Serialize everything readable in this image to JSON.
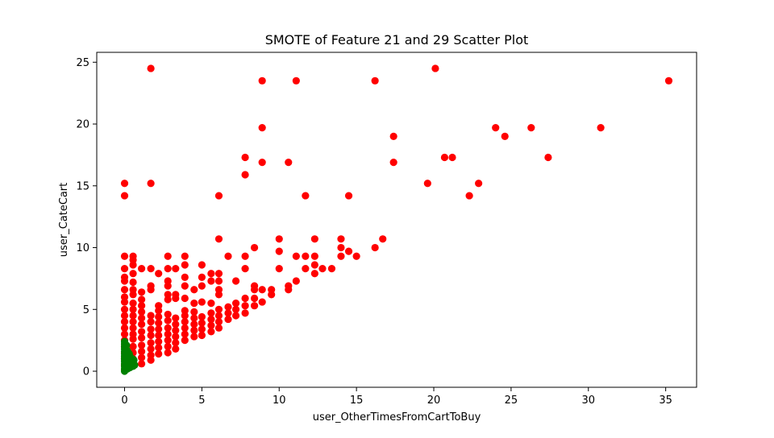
{
  "chart_data": {
    "type": "scatter",
    "title": "SMOTE of Feature 21 and 29 Scatter Plot",
    "xlabel": "user_OtherTimesFromCartToBuy",
    "ylabel": "user_CateCart",
    "xlim": [
      -1.8,
      37.0
    ],
    "ylim": [
      -1.3,
      25.8
    ],
    "xticks": [
      0,
      5,
      10,
      15,
      20,
      25,
      30,
      35
    ],
    "yticks": [
      0,
      5,
      10,
      15,
      20,
      25
    ],
    "grid": false,
    "colors": {
      "majority": "#ff0000",
      "minority": "#008000"
    },
    "series": [
      {
        "color": "#ff0000",
        "points": [
          [
            0,
            0.1
          ],
          [
            0,
            0.5
          ],
          [
            0,
            1.0
          ],
          [
            0,
            1.5
          ],
          [
            0,
            2.0
          ],
          [
            0,
            2.5
          ],
          [
            0,
            3.0
          ],
          [
            0,
            3.5
          ],
          [
            0,
            4.0
          ],
          [
            0,
            4.5
          ],
          [
            0,
            5.0
          ],
          [
            0,
            5.6
          ],
          [
            0,
            6.0
          ],
          [
            0,
            6.6
          ],
          [
            0,
            7.3
          ],
          [
            0,
            7.6
          ],
          [
            0,
            8.3
          ],
          [
            0,
            9.3
          ],
          [
            0,
            14.2
          ],
          [
            0,
            15.2
          ],
          [
            0.55,
            0.5
          ],
          [
            0.55,
            1.0
          ],
          [
            0.55,
            1.5
          ],
          [
            0.55,
            2.0
          ],
          [
            0.55,
            2.6
          ],
          [
            0.55,
            3.0
          ],
          [
            0.55,
            3.5
          ],
          [
            0.55,
            4.0
          ],
          [
            0.55,
            4.5
          ],
          [
            0.55,
            5.0
          ],
          [
            0.55,
            5.5
          ],
          [
            0.55,
            6.2
          ],
          [
            0.55,
            6.6
          ],
          [
            0.55,
            7.2
          ],
          [
            0.55,
            7.9
          ],
          [
            0.55,
            8.6
          ],
          [
            0.55,
            9.0
          ],
          [
            0.55,
            9.3
          ],
          [
            1.1,
            0.6
          ],
          [
            1.1,
            1.1
          ],
          [
            1.1,
            1.6
          ],
          [
            1.1,
            2.1
          ],
          [
            1.1,
            2.7
          ],
          [
            1.1,
            3.2
          ],
          [
            1.1,
            3.8
          ],
          [
            1.1,
            4.3
          ],
          [
            1.1,
            4.8
          ],
          [
            1.1,
            5.3
          ],
          [
            1.1,
            5.8
          ],
          [
            1.1,
            6.4
          ],
          [
            1.1,
            8.3
          ],
          [
            1.7,
            0.9
          ],
          [
            1.7,
            1.3
          ],
          [
            1.7,
            1.8
          ],
          [
            1.7,
            2.3
          ],
          [
            1.7,
            2.9
          ],
          [
            1.7,
            3.4
          ],
          [
            1.7,
            4.0
          ],
          [
            1.7,
            4.5
          ],
          [
            1.7,
            6.6
          ],
          [
            1.7,
            6.9
          ],
          [
            1.7,
            8.3
          ],
          [
            1.7,
            15.2
          ],
          [
            1.7,
            24.5
          ],
          [
            2.2,
            1.4
          ],
          [
            2.2,
            1.9
          ],
          [
            2.2,
            2.4
          ],
          [
            2.2,
            2.9
          ],
          [
            2.2,
            3.4
          ],
          [
            2.2,
            3.9
          ],
          [
            2.2,
            4.4
          ],
          [
            2.2,
            4.9
          ],
          [
            2.2,
            5.3
          ],
          [
            2.2,
            7.9
          ],
          [
            2.8,
            1.5
          ],
          [
            2.8,
            2.0
          ],
          [
            2.8,
            2.5
          ],
          [
            2.8,
            3.0
          ],
          [
            2.8,
            3.5
          ],
          [
            2.8,
            4.1
          ],
          [
            2.8,
            4.6
          ],
          [
            2.8,
            5.8
          ],
          [
            2.8,
            6.2
          ],
          [
            2.8,
            6.9
          ],
          [
            2.8,
            7.3
          ],
          [
            2.8,
            8.3
          ],
          [
            2.8,
            9.3
          ],
          [
            3.3,
            1.8
          ],
          [
            3.3,
            2.3
          ],
          [
            3.3,
            2.8
          ],
          [
            3.3,
            3.3
          ],
          [
            3.3,
            3.8
          ],
          [
            3.3,
            4.3
          ],
          [
            3.3,
            5.9
          ],
          [
            3.3,
            6.2
          ],
          [
            3.3,
            8.3
          ],
          [
            3.9,
            2.5
          ],
          [
            3.9,
            3.0
          ],
          [
            3.9,
            3.5
          ],
          [
            3.9,
            4.0
          ],
          [
            3.9,
            4.5
          ],
          [
            3.9,
            4.9
          ],
          [
            3.9,
            5.9
          ],
          [
            3.9,
            6.9
          ],
          [
            3.9,
            7.6
          ],
          [
            3.9,
            8.6
          ],
          [
            3.9,
            9.3
          ],
          [
            4.5,
            2.8
          ],
          [
            4.5,
            3.3
          ],
          [
            4.5,
            3.8
          ],
          [
            4.5,
            4.3
          ],
          [
            4.5,
            4.8
          ],
          [
            4.5,
            5.5
          ],
          [
            4.5,
            6.6
          ],
          [
            5.0,
            2.9
          ],
          [
            5.0,
            3.4
          ],
          [
            5.0,
            3.9
          ],
          [
            5.0,
            4.4
          ],
          [
            5.0,
            5.6
          ],
          [
            5.0,
            6.9
          ],
          [
            5.0,
            7.6
          ],
          [
            5.0,
            8.6
          ],
          [
            5.6,
            3.2
          ],
          [
            5.6,
            3.7
          ],
          [
            5.6,
            4.2
          ],
          [
            5.6,
            4.7
          ],
          [
            5.6,
            5.5
          ],
          [
            5.6,
            7.3
          ],
          [
            5.6,
            7.9
          ],
          [
            6.1,
            3.5
          ],
          [
            6.1,
            4.0
          ],
          [
            6.1,
            4.5
          ],
          [
            6.1,
            5.0
          ],
          [
            6.1,
            6.2
          ],
          [
            6.1,
            6.6
          ],
          [
            6.1,
            7.3
          ],
          [
            6.1,
            7.9
          ],
          [
            6.1,
            10.7
          ],
          [
            6.1,
            14.2
          ],
          [
            6.7,
            4.2
          ],
          [
            6.7,
            4.7
          ],
          [
            6.7,
            5.2
          ],
          [
            6.7,
            9.3
          ],
          [
            7.2,
            4.5
          ],
          [
            7.2,
            5.0
          ],
          [
            7.2,
            5.5
          ],
          [
            7.2,
            7.3
          ],
          [
            7.8,
            4.7
          ],
          [
            7.8,
            5.3
          ],
          [
            7.8,
            5.9
          ],
          [
            7.8,
            8.3
          ],
          [
            7.8,
            9.3
          ],
          [
            7.8,
            15.9
          ],
          [
            7.8,
            17.3
          ],
          [
            8.4,
            5.3
          ],
          [
            8.4,
            5.9
          ],
          [
            8.4,
            6.6
          ],
          [
            8.4,
            6.9
          ],
          [
            8.4,
            10.0
          ],
          [
            8.9,
            5.6
          ],
          [
            8.9,
            6.6
          ],
          [
            8.9,
            16.9
          ],
          [
            8.9,
            19.7
          ],
          [
            8.9,
            23.5
          ],
          [
            9.5,
            6.2
          ],
          [
            9.5,
            6.6
          ],
          [
            10.0,
            8.3
          ],
          [
            10.0,
            9.7
          ],
          [
            10.0,
            10.7
          ],
          [
            10.6,
            6.6
          ],
          [
            10.6,
            6.9
          ],
          [
            10.6,
            16.9
          ],
          [
            11.1,
            7.3
          ],
          [
            11.1,
            9.3
          ],
          [
            11.1,
            23.5
          ],
          [
            11.7,
            8.3
          ],
          [
            11.7,
            9.3
          ],
          [
            11.7,
            14.2
          ],
          [
            12.3,
            7.9
          ],
          [
            12.3,
            8.6
          ],
          [
            12.3,
            9.3
          ],
          [
            12.3,
            10.7
          ],
          [
            12.8,
            8.3
          ],
          [
            13.4,
            8.3
          ],
          [
            14.0,
            9.3
          ],
          [
            14.0,
            10.0
          ],
          [
            14.0,
            10.7
          ],
          [
            14.5,
            9.7
          ],
          [
            14.5,
            14.2
          ],
          [
            15.0,
            9.3
          ],
          [
            16.2,
            10.0
          ],
          [
            16.2,
            23.5
          ],
          [
            16.7,
            10.7
          ],
          [
            17.4,
            16.9
          ],
          [
            17.4,
            19.0
          ],
          [
            19.6,
            15.2
          ],
          [
            20.1,
            24.5
          ],
          [
            20.7,
            17.3
          ],
          [
            21.2,
            17.3
          ],
          [
            22.3,
            14.2
          ],
          [
            22.9,
            15.2
          ],
          [
            24.0,
            19.7
          ],
          [
            24.6,
            19.0
          ],
          [
            26.3,
            19.7
          ],
          [
            27.4,
            17.3
          ],
          [
            30.8,
            19.7
          ],
          [
            35.2,
            23.5
          ]
        ]
      },
      {
        "color": "#008000",
        "points": [
          [
            0,
            0.0
          ],
          [
            0,
            0.2
          ],
          [
            0,
            0.4
          ],
          [
            0,
            0.6
          ],
          [
            0,
            0.8
          ],
          [
            0,
            1.0
          ],
          [
            0,
            1.2
          ],
          [
            0,
            1.4
          ],
          [
            0,
            1.6
          ],
          [
            0,
            1.8
          ],
          [
            0,
            2.0
          ],
          [
            0,
            2.2
          ],
          [
            0,
            2.4
          ],
          [
            0.05,
            0.3
          ],
          [
            0.05,
            0.9
          ],
          [
            0.05,
            1.5
          ],
          [
            0.08,
            0.6
          ],
          [
            0.08,
            1.1
          ],
          [
            0.08,
            1.9
          ],
          [
            0.12,
            0.4
          ],
          [
            0.12,
            1.3
          ],
          [
            0.12,
            2.1
          ],
          [
            0.15,
            0.7
          ],
          [
            0.15,
            1.7
          ],
          [
            0.2,
            0.2
          ],
          [
            0.2,
            1.0
          ],
          [
            0.2,
            1.6
          ],
          [
            0.25,
            0.5
          ],
          [
            0.25,
            1.2
          ],
          [
            0.3,
            0.8
          ],
          [
            0.3,
            1.4
          ],
          [
            0.35,
            0.3
          ],
          [
            0.4,
            1.1
          ],
          [
            0.45,
            0.6
          ],
          [
            0.5,
            1.0
          ],
          [
            0.55,
            0.4
          ],
          [
            0.6,
            0.9
          ],
          [
            0.65,
            0.5
          ]
        ]
      }
    ]
  }
}
